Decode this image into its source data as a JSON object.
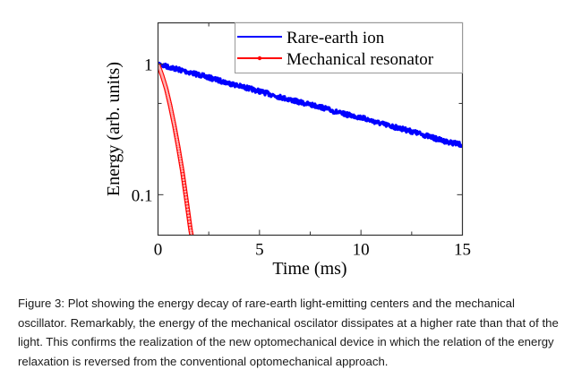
{
  "chart_data": {
    "type": "line",
    "title": "",
    "xlabel": "Time (ms)",
    "ylabel": "Energy (arb. units)",
    "xlim": [
      0,
      15
    ],
    "ylim": [
      0.049,
      2.07
    ],
    "yscale": "log",
    "x_ticks": [
      0,
      5,
      10,
      15
    ],
    "x_tick_labels": [
      "0",
      "5",
      "10",
      "15"
    ],
    "x_minor_ticks": [
      2.5,
      7.5,
      12.5
    ],
    "y_ticks": [
      0.1,
      1
    ],
    "y_tick_labels": [
      "0.1",
      "1"
    ],
    "y_minor_ticks": [
      0.5
    ],
    "grid": false,
    "legend_position": "top-right",
    "series": [
      {
        "name": "Rare-earth ion",
        "color": "#0000ff",
        "marker": "none",
        "model": "exp(-t/10.5)",
        "x": [
          0,
          1,
          2,
          3,
          4,
          5,
          6,
          7,
          8,
          9,
          10,
          11,
          12,
          13,
          14,
          15
        ],
        "values": [
          1.0,
          0.91,
          0.83,
          0.75,
          0.68,
          0.62,
          0.56,
          0.51,
          0.47,
          0.42,
          0.39,
          0.35,
          0.32,
          0.29,
          0.26,
          0.24
        ]
      },
      {
        "name": "Mechanical resonator",
        "color": "#ff0000",
        "marker": "dot",
        "model": "exp(-0.86 t - 0.60 t^2)",
        "x": [
          0,
          0.2,
          0.4,
          0.6,
          0.8,
          1.0,
          1.2,
          1.4,
          1.6,
          1.65
        ],
        "values": [
          1.0,
          0.82,
          0.65,
          0.48,
          0.34,
          0.23,
          0.15,
          0.091,
          0.054,
          0.049
        ]
      }
    ]
  },
  "caption": {
    "text": "Figure 3: Plot showing the energy decay of rare-earth light-emitting centers and the mechanical oscillator. Remarkably, the energy of the mechanical oscilator dissipates at a higher rate than that of the light. This confirms the realization of the new optomechanical device in which the relation of the energy relaxation is reversed from the conventional optomechanical approach."
  }
}
